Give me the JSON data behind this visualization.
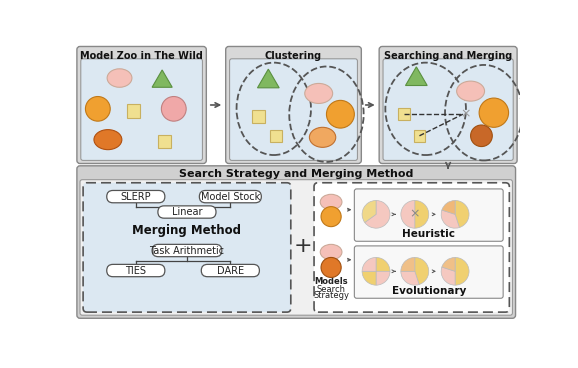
{
  "title_zoo": "Model Zoo in The Wild",
  "title_clustering": "Clustering",
  "title_searching": "Searching and Merging",
  "title_bottom": "Search Strategy and Merging Method",
  "title_merging": "Merging Method",
  "title_heuristic": "Heuristic",
  "title_evolutionary": "Evolutionary",
  "label_models": "Models",
  "label_search": "Search\nStrategy",
  "bg_panel_outer": "#d8d8d8",
  "bg_panel_inner": "#dce8f2",
  "bg_bottom_outer": "#c8c8c8",
  "bg_bottom_inner": "#dce8f2",
  "bg_white": "#ffffff",
  "bg_subbox": "#f5f5f5",
  "color_orange": "#f0a030",
  "color_pink": "#f0a0a0",
  "color_light_pink": "#f5c8c0",
  "color_peach": "#f0c0a0",
  "color_green": "#80b860",
  "color_yellow_sq": "#f0e090",
  "color_orange_dark": "#e07828"
}
